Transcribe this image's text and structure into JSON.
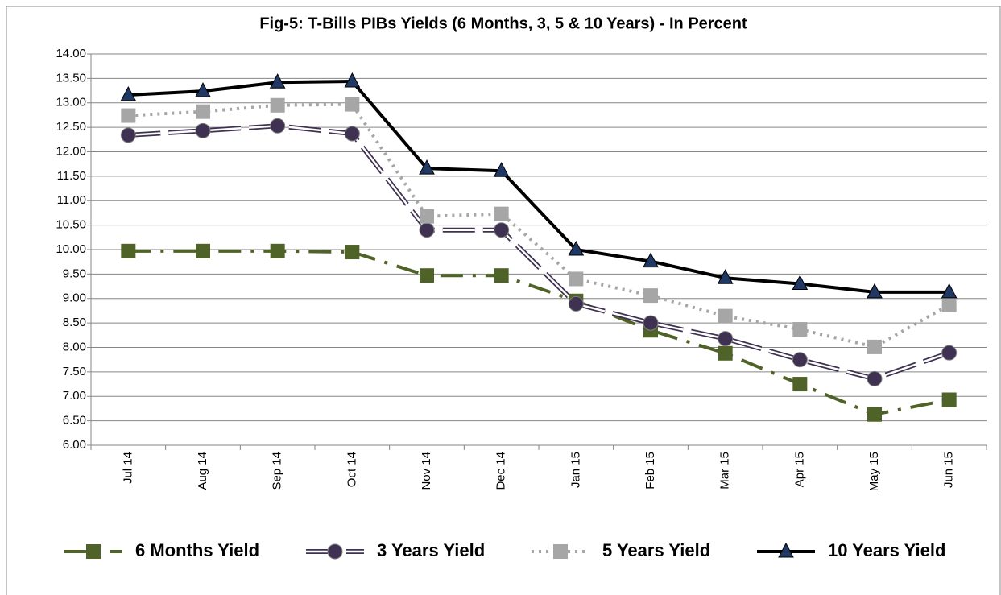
{
  "chart_data": {
    "type": "line",
    "title": "Fig-5: T-Bills PIBs Yields (6 Months, 3, 5 & 10 Years) - In Percent",
    "categories": [
      "Jul 14",
      "Aug 14",
      "Sep 14",
      "Oct 14",
      "Nov 14",
      "Dec 14",
      "Jan 15",
      "Feb 15",
      "Mar 15",
      "Apr 15",
      "May 15",
      "Jun 15"
    ],
    "series": [
      {
        "name": "6 Months Yield",
        "color": "#4f6228",
        "dash": "dashdot",
        "marker": "square",
        "values": [
          9.97,
          9.97,
          9.97,
          9.95,
          9.47,
          9.47,
          8.95,
          8.35,
          7.88,
          7.25,
          6.63,
          6.93
        ]
      },
      {
        "name": "3 Years Yield",
        "color": "#3f3151",
        "dash": "double",
        "marker": "circle",
        "values": [
          12.34,
          12.43,
          12.53,
          12.37,
          10.4,
          10.4,
          8.89,
          8.5,
          8.18,
          7.75,
          7.36,
          7.89
        ]
      },
      {
        "name": "5 Years Yield",
        "color": "#a6a6a6",
        "dash": "dotted",
        "marker": "square",
        "values": [
          12.74,
          12.82,
          12.95,
          12.97,
          10.68,
          10.73,
          9.4,
          9.06,
          8.64,
          8.37,
          8.01,
          8.87
        ]
      },
      {
        "name": "10 Years Yield",
        "color": "#000000",
        "dash": "solid",
        "marker": "triangle",
        "values": [
          13.16,
          13.24,
          13.42,
          13.44,
          11.66,
          11.61,
          10.0,
          9.76,
          9.42,
          9.3,
          9.13,
          9.13
        ]
      }
    ],
    "ylim": [
      6,
      14
    ],
    "yticks": [
      {
        "value": 6,
        "label": "6.00"
      },
      {
        "value": 6.5,
        "label": "6.50"
      },
      {
        "value": 7,
        "label": "7.00"
      },
      {
        "value": 7.5,
        "label": "7.50"
      },
      {
        "value": 8,
        "label": "8.00"
      },
      {
        "value": 8.5,
        "label": "8.50"
      },
      {
        "value": 9,
        "label": "9.00"
      },
      {
        "value": 9.5,
        "label": "9.50"
      },
      {
        "value": 10,
        "label": "10.00"
      },
      {
        "value": 10.5,
        "label": "10.50"
      },
      {
        "value": 11,
        "label": "11.00"
      },
      {
        "value": 11.5,
        "label": "11.50"
      },
      {
        "value": 12,
        "label": "12.00"
      },
      {
        "value": 12.5,
        "label": "12.50"
      },
      {
        "value": 13,
        "label": "13.00"
      },
      {
        "value": 13.5,
        "label": "13.50"
      },
      {
        "value": 14,
        "label": "14.00"
      }
    ],
    "grid": true,
    "legend": "bottom"
  }
}
